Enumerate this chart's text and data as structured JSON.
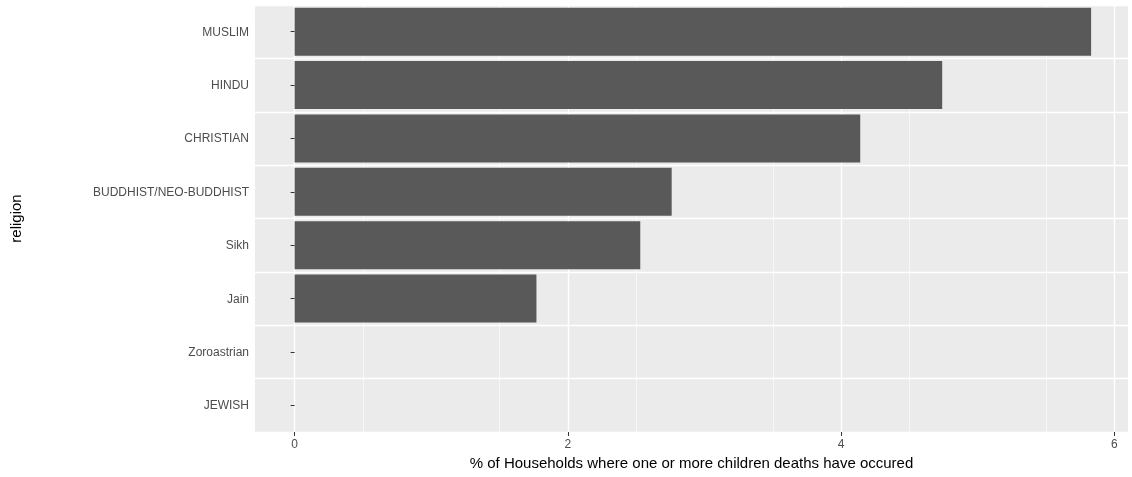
{
  "chart_data": {
    "type": "bar",
    "orientation": "horizontal",
    "xlabel": "% of Households where one or more children deaths have occured",
    "ylabel": "religion",
    "categories": [
      "MUSLIM",
      "HINDU",
      "CHRISTIAN",
      "BUDDHIST/NEO-BUDDHIST",
      "Sikh",
      "Jain",
      "Zoroastrian",
      "JEWISH"
    ],
    "values": [
      5.83,
      4.74,
      4.14,
      2.76,
      2.53,
      1.77,
      0,
      0
    ],
    "color": "#595959",
    "xlim": [
      -0.29,
      6.1
    ],
    "xticks": [
      0,
      2,
      4,
      6
    ],
    "grid": true
  }
}
